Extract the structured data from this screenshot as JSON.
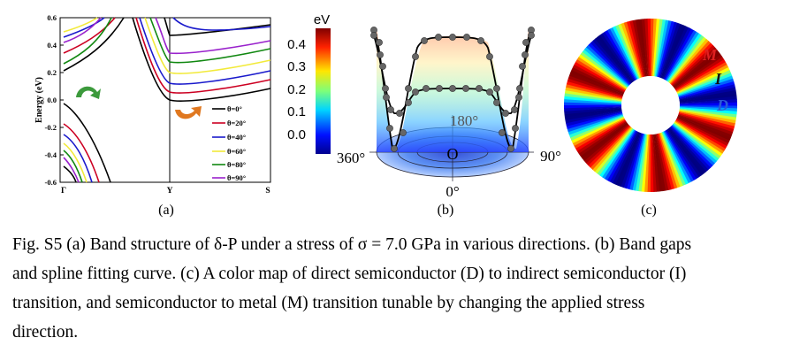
{
  "panel_a": {
    "label": "(a)",
    "y_axis_title": "Energy (eV)",
    "y_ticks": [
      "0.6",
      "0.4",
      "0.2",
      "0.0",
      "-0.2",
      "-0.4",
      "-0.6"
    ],
    "x_ticks": [
      "Γ",
      "Y",
      "S"
    ],
    "legend": [
      "θ=0°",
      "θ=20°",
      "θ=40°",
      "θ=60°",
      "θ=80°",
      "θ=90°"
    ],
    "series_colors": [
      "#000000",
      "#cc0022",
      "#1a1acc",
      "#f2ea3a",
      "#118811",
      "#9922cc"
    ]
  },
  "panel_b": {
    "label": "(b)",
    "colorbar_unit": "eV",
    "colorbar_ticks": [
      "0.4",
      "0.3",
      "0.2",
      "0.1",
      "0.0"
    ],
    "angle_labels": [
      "180°",
      "360°",
      "90°",
      "0°"
    ],
    "center_label": "O"
  },
  "panel_c": {
    "label": "(c)",
    "region_labels": [
      {
        "text": "M",
        "color": "#e02020"
      },
      {
        "text": "I",
        "color": "#111111"
      },
      {
        "text": "D",
        "color": "#2a5ad8"
      }
    ]
  },
  "caption": {
    "lines": [
      "Fig. S5 (a) Band structure of δ-P under a stress of σ = 7.0 GPa in various directions. (b) Band gaps",
      "and spline fitting curve. (c) A color map of direct semiconductor (D) to indirect semiconductor (I)",
      "transition, and semiconductor to metal (M) transition tunable by changing the applied stress",
      "direction."
    ]
  }
}
